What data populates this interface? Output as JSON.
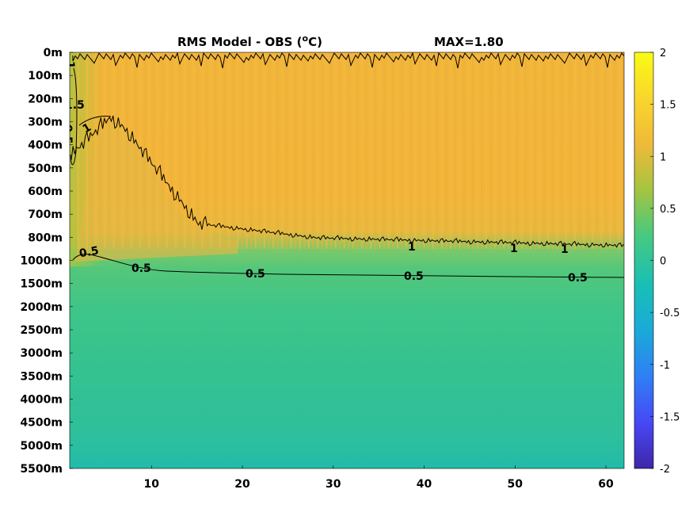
{
  "chart_data": {
    "type": "heatmap",
    "title": "RMS Model - OBS (",
    "title_unit_sup": "o",
    "title_unit_end": "C)",
    "max_label": "MAX=1.80",
    "x": {
      "range": [
        1,
        62
      ],
      "ticks": [
        "10",
        "20",
        "30",
        "40",
        "50",
        "60"
      ],
      "tick_values": [
        10,
        20,
        30,
        40,
        50,
        60
      ]
    },
    "y": {
      "ticks": [
        "0m",
        "100m",
        "200m",
        "300m",
        "400m",
        "500m",
        "600m",
        "700m",
        "800m",
        "1000m",
        "1500m",
        "2000m",
        "2500m",
        "3000m",
        "3500m",
        "4000m",
        "4500m",
        "5000m",
        "5500m"
      ],
      "reversed": true
    },
    "colorbar": {
      "range": [
        -2,
        2
      ],
      "ticks": [
        "2",
        "1.5",
        "1",
        "0.5",
        "0",
        "-0.5",
        "-1",
        "-1.5",
        "-2"
      ],
      "tick_values": [
        2,
        1.5,
        1,
        0.5,
        0,
        -0.5,
        -1,
        -1.5,
        -2
      ],
      "colormap": "parula",
      "colors": [
        "#3e26a8",
        "#4748f5",
        "#2f7ff4",
        "#1ba9d9",
        "#18bfb5",
        "#47c980",
        "#a5c440",
        "#f0ba39",
        "#f9d62d",
        "#f9fb15"
      ]
    },
    "field_summary": [
      {
        "depth_band": "0m-800m",
        "value": 1.35
      },
      {
        "depth_band": "1000m-1500m",
        "value": 0.5
      },
      {
        "depth_band": "2000m-5500m",
        "value": 0.3
      }
    ],
    "contours": [
      {
        "level": 1,
        "labels": [
          "1",
          "1",
          "1",
          "1",
          "1"
        ]
      },
      {
        "level": 1.5,
        "labels": [
          "1.5"
        ]
      },
      {
        "level": 0.5,
        "labels": [
          "0.5",
          "0.5",
          "0.5",
          "0.5",
          "0.5",
          "0.5",
          "0.5"
        ]
      }
    ]
  }
}
